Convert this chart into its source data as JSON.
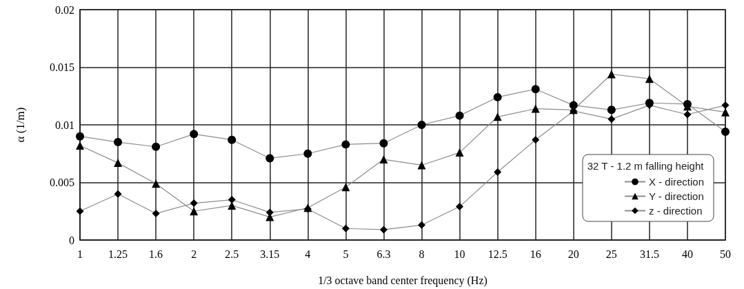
{
  "chart_data": {
    "type": "line",
    "xlabel": "1/3 octave band center frequency (Hz)",
    "ylabel": "α (1/m)",
    "legend_title": "32 T - 1.2 m falling height",
    "categories": [
      "1",
      "1.25",
      "1.6",
      "2",
      "2.5",
      "3.15",
      "4",
      "5",
      "6.3",
      "8",
      "10",
      "12.5",
      "16",
      "20",
      "25",
      "31.5",
      "40",
      "50"
    ],
    "series": [
      {
        "name": "X - direction",
        "color": "#000000",
        "marker": "circle",
        "values": [
          0.009,
          0.0085,
          0.0081,
          0.0092,
          0.0087,
          0.0071,
          0.0075,
          0.0083,
          0.0084,
          0.01,
          0.0108,
          0.0124,
          0.0131,
          0.0117,
          0.0113,
          0.0119,
          0.0118,
          0.0094
        ]
      },
      {
        "name": "Y - direction",
        "color": "#000000",
        "marker": "triangle",
        "values": [
          0.0082,
          0.0067,
          0.0049,
          0.0025,
          0.003,
          0.002,
          0.0028,
          0.0046,
          0.007,
          0.0065,
          0.0076,
          0.0107,
          0.0114,
          0.0113,
          0.0144,
          0.014,
          0.0116,
          0.0111
        ]
      },
      {
        "name": "z - direction",
        "color": "#000000",
        "marker": "diamond",
        "values": [
          0.0025,
          0.004,
          0.0023,
          0.0032,
          0.0035,
          0.0024,
          0.0027,
          0.001,
          0.0009,
          0.0013,
          0.0029,
          0.0059,
          0.0087,
          0.0112,
          0.0105,
          0.0117,
          0.0109,
          0.0117
        ]
      }
    ],
    "ylim": [
      0,
      0.02
    ],
    "yticks": [
      0,
      0.005,
      0.01,
      0.015,
      0.02
    ],
    "grid": true,
    "legend": "bottom right",
    "line_style": "solid"
  }
}
